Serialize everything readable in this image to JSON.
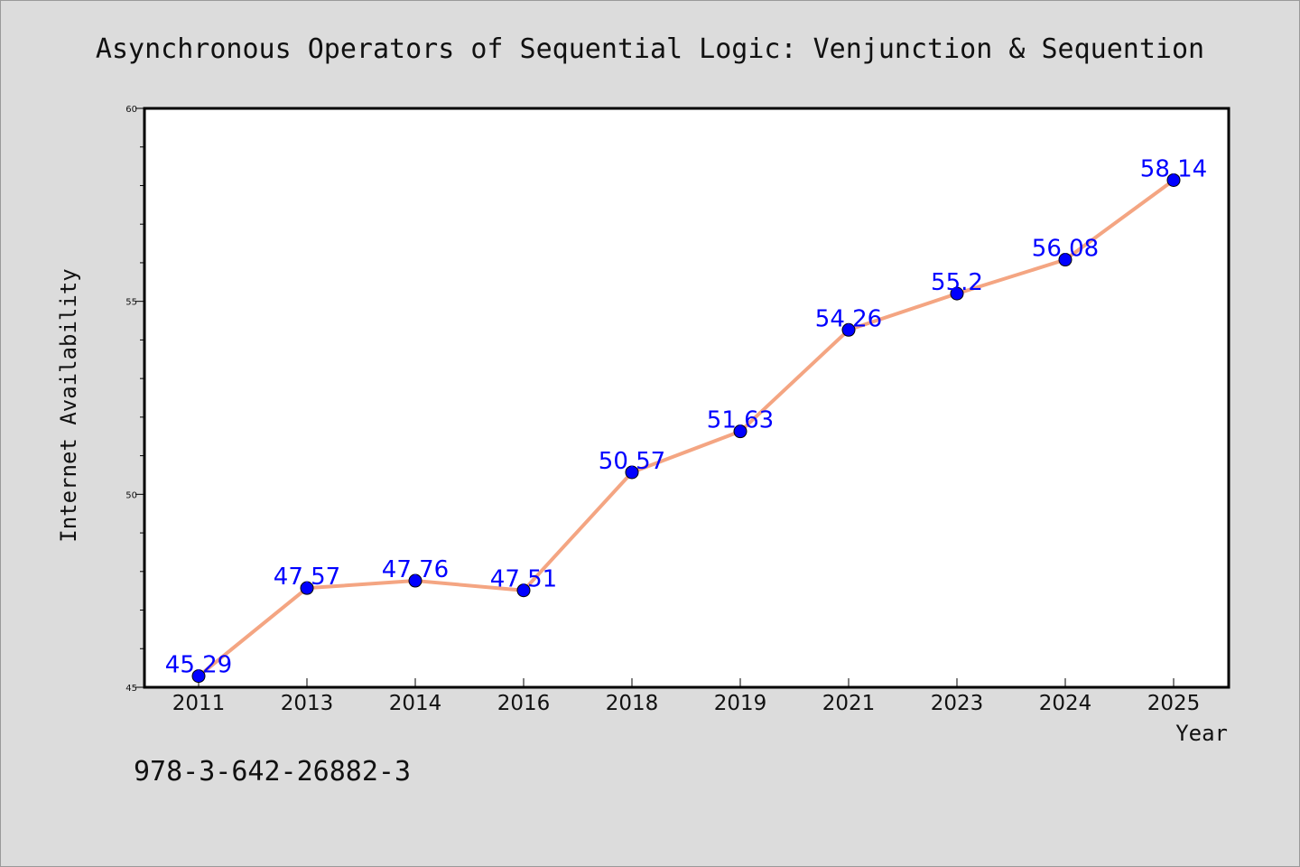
{
  "chart_data": {
    "type": "line",
    "title": "Asynchronous Operators of Sequential Logic: Venjunction & Sequention",
    "xlabel": "Year",
    "ylabel": "Internet Availability",
    "categories": [
      "2011",
      "2013",
      "2014",
      "2016",
      "2018",
      "2019",
      "2021",
      "2023",
      "2024",
      "2025"
    ],
    "series": [
      {
        "values": [
          45.29,
          47.57,
          47.76,
          47.51,
          50.57,
          51.63,
          54.26,
          55.2,
          56.08,
          58.14
        ],
        "labels": [
          "45.29",
          "47.57",
          "47.76",
          "47.51",
          "50.57",
          "51.63",
          "54.26",
          "55.2",
          "56.08",
          "58.14"
        ]
      }
    ],
    "ylim": [
      45,
      60
    ],
    "yticks": [
      45,
      50,
      55,
      60
    ],
    "ytick_labels": [
      "45",
      "50",
      "55",
      "60"
    ],
    "grid": false,
    "colors": {
      "line": "#f4a582",
      "marker": "#0000ff",
      "label": "#0000ff",
      "background": "#dcdcdc",
      "plot_background": "#ffffff"
    }
  },
  "footer": {
    "isbn": "978-3-642-26882-3"
  }
}
